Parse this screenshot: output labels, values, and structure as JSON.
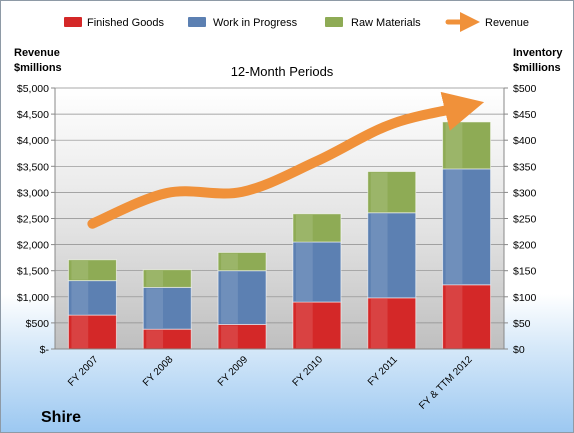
{
  "chart_data": {
    "type": "bar",
    "stacked": true,
    "company": "Shire",
    "title": "12-Month Periods",
    "ylabel_left": [
      "Revenue",
      "$millions"
    ],
    "ylabel_right": [
      "Inventory",
      "$millions"
    ],
    "categories": [
      "FY 2007",
      "FY 2008",
      "FY 2009",
      "FY 2010",
      "FY 2011",
      "FY & TTM 2012"
    ],
    "series": [
      {
        "name": "Finished Goods",
        "color": "#d42828",
        "axis": "right",
        "values": [
          65,
          38,
          47,
          90,
          98,
          123
        ]
      },
      {
        "name": "Work in Progress",
        "color": "#5c80b2",
        "axis": "right",
        "values": [
          66,
          80,
          103,
          115,
          163,
          222
        ]
      },
      {
        "name": "Raw Materials",
        "color": "#8eab55",
        "axis": "right",
        "values": [
          40,
          34,
          35,
          54,
          79,
          90
        ]
      }
    ],
    "line_series": {
      "name": "Revenue",
      "color": "#f0913a",
      "axis": "left",
      "values": [
        2400,
        2990,
        3010,
        3600,
        4310,
        4650
      ]
    },
    "ylim_left": [
      0,
      5000
    ],
    "yticks_left": [
      "$-",
      "$500",
      "$1,000",
      "$1,500",
      "$2,000",
      "$2,500",
      "$3,000",
      "$3,500",
      "$4,000",
      "$4,500",
      "$5,000"
    ],
    "ylim_right": [
      0,
      500
    ],
    "yticks_right": [
      "$0",
      "$50",
      "$100",
      "$150",
      "$200",
      "$250",
      "$300",
      "$350",
      "$400",
      "$450",
      "$500"
    ],
    "grid": true,
    "legend_position": "top"
  }
}
